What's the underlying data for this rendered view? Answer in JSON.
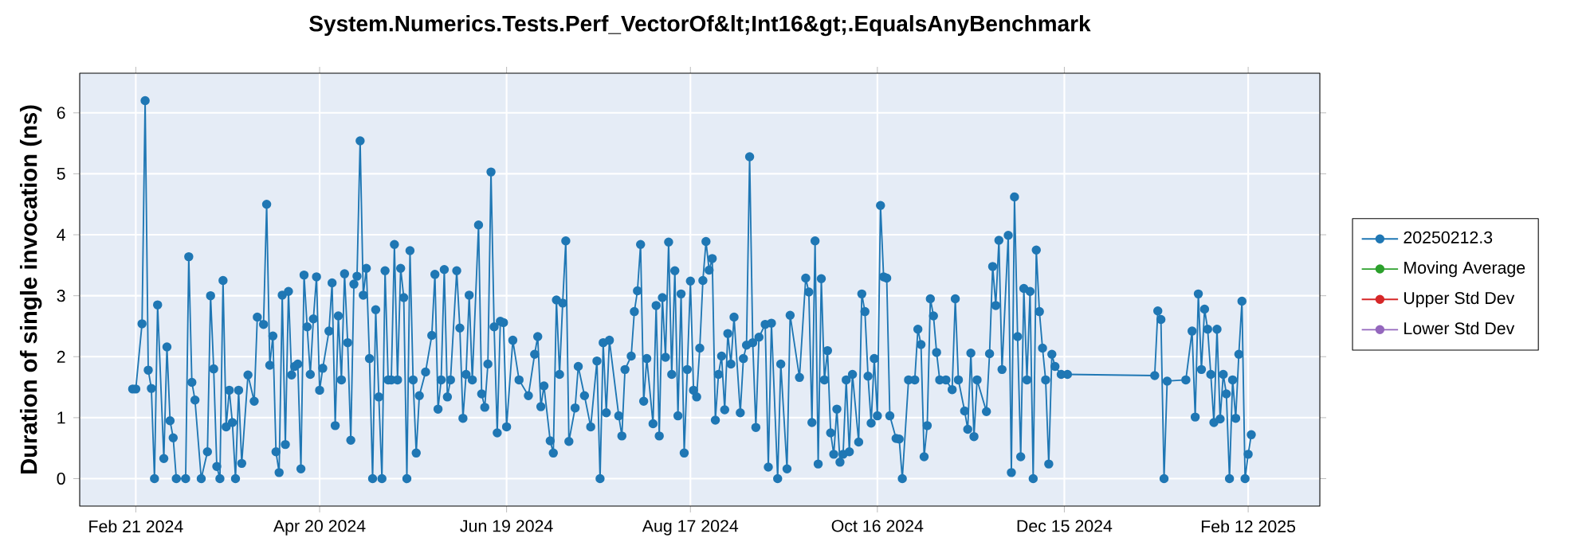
{
  "chart_data": {
    "type": "line",
    "title": "System.Numerics.Tests.Perf_VectorOf&lt;Int16&gt;.EqualsAnyBenchmark",
    "ylabel": "Duration of single invocation (ns)",
    "xlim": [
      "2024-02-03",
      "2025-03-07"
    ],
    "ylim": [
      -0.45,
      6.65
    ],
    "xticks": [
      {
        "value": "2024-02-21",
        "label": "Feb 21 2024"
      },
      {
        "value": "2024-04-20",
        "label": "Apr 20 2024"
      },
      {
        "value": "2024-06-19",
        "label": "Jun 19 2024"
      },
      {
        "value": "2024-08-17",
        "label": "Aug 17 2024"
      },
      {
        "value": "2024-10-16",
        "label": "Oct 16 2024"
      },
      {
        "value": "2024-12-15",
        "label": "Dec 15 2024"
      },
      {
        "value": "2025-02-12",
        "label": "Feb 12 2025"
      }
    ],
    "yticks": [
      0,
      1,
      2,
      3,
      4,
      5,
      6
    ],
    "grid": true,
    "legend": "right",
    "marker": "circle",
    "line_style": "solid",
    "series": [
      {
        "name": "20250212.3",
        "color": "#1f77b4",
        "x": [
          "2024-02-20",
          "2024-02-21",
          "2024-02-23",
          "2024-02-24",
          "2024-02-25",
          "2024-02-26",
          "2024-02-27",
          "2024-02-28",
          "2024-03-01",
          "2024-03-02",
          "2024-03-03",
          "2024-03-04",
          "2024-03-05",
          "2024-03-08",
          "2024-03-09",
          "2024-03-10",
          "2024-03-11",
          "2024-03-13",
          "2024-03-15",
          "2024-03-16",
          "2024-03-17",
          "2024-03-18",
          "2024-03-19",
          "2024-03-20",
          "2024-03-21",
          "2024-03-22",
          "2024-03-23",
          "2024-03-24",
          "2024-03-25",
          "2024-03-26",
          "2024-03-28",
          "2024-03-30",
          "2024-03-31",
          "2024-04-02",
          "2024-04-03",
          "2024-04-04",
          "2024-04-05",
          "2024-04-06",
          "2024-04-07",
          "2024-04-08",
          "2024-04-09",
          "2024-04-10",
          "2024-04-11",
          "2024-04-12",
          "2024-04-13",
          "2024-04-14",
          "2024-04-15",
          "2024-04-16",
          "2024-04-17",
          "2024-04-18",
          "2024-04-19",
          "2024-04-20",
          "2024-04-21",
          "2024-04-23",
          "2024-04-24",
          "2024-04-25",
          "2024-04-26",
          "2024-04-27",
          "2024-04-28",
          "2024-04-29",
          "2024-04-30",
          "2024-05-01",
          "2024-05-02",
          "2024-05-03",
          "2024-05-04",
          "2024-05-05",
          "2024-05-06",
          "2024-05-07",
          "2024-05-08",
          "2024-05-09",
          "2024-05-10",
          "2024-05-11",
          "2024-05-12",
          "2024-05-13",
          "2024-05-14",
          "2024-05-15",
          "2024-05-16",
          "2024-05-17",
          "2024-05-18",
          "2024-05-19",
          "2024-05-20",
          "2024-05-21",
          "2024-05-22",
          "2024-05-24",
          "2024-05-26",
          "2024-05-27",
          "2024-05-28",
          "2024-05-29",
          "2024-05-30",
          "2024-05-31",
          "2024-06-01",
          "2024-06-03",
          "2024-06-04",
          "2024-06-05",
          "2024-06-06",
          "2024-06-07",
          "2024-06-08",
          "2024-06-10",
          "2024-06-11",
          "2024-06-12",
          "2024-06-13",
          "2024-06-14",
          "2024-06-15",
          "2024-06-16",
          "2024-06-17",
          "2024-06-18",
          "2024-06-19",
          "2024-06-21",
          "2024-06-23",
          "2024-06-26",
          "2024-06-28",
          "2024-06-29",
          "2024-06-30",
          "2024-07-01",
          "2024-07-03",
          "2024-07-04",
          "2024-07-05",
          "2024-07-06",
          "2024-07-07",
          "2024-07-08",
          "2024-07-09",
          "2024-07-11",
          "2024-07-12",
          "2024-07-14",
          "2024-07-16",
          "2024-07-18",
          "2024-07-19",
          "2024-07-20",
          "2024-07-21",
          "2024-07-22",
          "2024-07-25",
          "2024-07-26",
          "2024-07-27",
          "2024-07-29",
          "2024-07-30",
          "2024-07-31",
          "2024-08-01",
          "2024-08-02",
          "2024-08-03",
          "2024-08-05",
          "2024-08-06",
          "2024-08-07",
          "2024-08-08",
          "2024-08-09",
          "2024-08-10",
          "2024-08-11",
          "2024-08-12",
          "2024-08-13",
          "2024-08-14",
          "2024-08-15",
          "2024-08-16",
          "2024-08-17",
          "2024-08-18",
          "2024-08-19",
          "2024-08-20",
          "2024-08-21",
          "2024-08-22",
          "2024-08-23",
          "2024-08-24",
          "2024-08-25",
          "2024-08-26",
          "2024-08-27",
          "2024-08-28",
          "2024-08-29",
          "2024-08-30",
          "2024-08-31",
          "2024-09-02",
          "2024-09-03",
          "2024-09-04",
          "2024-09-05",
          "2024-09-06",
          "2024-09-07",
          "2024-09-08",
          "2024-09-10",
          "2024-09-11",
          "2024-09-12",
          "2024-09-14",
          "2024-09-15",
          "2024-09-17",
          "2024-09-18",
          "2024-09-21",
          "2024-09-23",
          "2024-09-24",
          "2024-09-25",
          "2024-09-26",
          "2024-09-27",
          "2024-09-28",
          "2024-09-29",
          "2024-09-30",
          "2024-10-01",
          "2024-10-02",
          "2024-10-03",
          "2024-10-04",
          "2024-10-05",
          "2024-10-06",
          "2024-10-07",
          "2024-10-08",
          "2024-10-10",
          "2024-10-11",
          "2024-10-12",
          "2024-10-13",
          "2024-10-14",
          "2024-10-15",
          "2024-10-16",
          "2024-10-17",
          "2024-10-18",
          "2024-10-19",
          "2024-10-20",
          "2024-10-22",
          "2024-10-23",
          "2024-10-24",
          "2024-10-26",
          "2024-10-28",
          "2024-10-29",
          "2024-10-30",
          "2024-10-31",
          "2024-11-01",
          "2024-11-02",
          "2024-11-03",
          "2024-11-04",
          "2024-11-05",
          "2024-11-07",
          "2024-11-09",
          "2024-11-10",
          "2024-11-11",
          "2024-11-13",
          "2024-11-14",
          "2024-11-15",
          "2024-11-16",
          "2024-11-17",
          "2024-11-20",
          "2024-11-21",
          "2024-11-22",
          "2024-11-23",
          "2024-11-24",
          "2024-11-25",
          "2024-11-27",
          "2024-11-28",
          "2024-11-29",
          "2024-11-30",
          "2024-12-01",
          "2024-12-02",
          "2024-12-03",
          "2024-12-04",
          "2024-12-05",
          "2024-12-06",
          "2024-12-07",
          "2024-12-08",
          "2024-12-09",
          "2024-12-10",
          "2024-12-11",
          "2024-12-12",
          "2024-12-14",
          "2024-12-16",
          "2025-01-13",
          "2025-01-14",
          "2025-01-15",
          "2025-01-16",
          "2025-01-17",
          "2025-01-23",
          "2025-01-25",
          "2025-01-26",
          "2025-01-27",
          "2025-01-28",
          "2025-01-29",
          "2025-01-30",
          "2025-01-31",
          "2025-02-01",
          "2025-02-02",
          "2025-02-03",
          "2025-02-04",
          "2025-02-05",
          "2025-02-06",
          "2025-02-07",
          "2025-02-08",
          "2025-02-09",
          "2025-02-10",
          "2025-02-11",
          "2025-02-12",
          "2025-02-13"
        ],
        "values": [
          1.47,
          1.47,
          2.54,
          6.2,
          1.78,
          1.48,
          0,
          2.85,
          0.33,
          2.16,
          0.95,
          0.67,
          0,
          0,
          3.64,
          1.58,
          1.29,
          0,
          0.44,
          3.0,
          1.8,
          0.2,
          0,
          3.25,
          0.85,
          1.45,
          0.92,
          0,
          1.45,
          0.25,
          1.7,
          1.27,
          2.65,
          2.53,
          4.5,
          1.86,
          2.34,
          0.44,
          0.1,
          3.01,
          0.56,
          3.07,
          1.7,
          1.84,
          1.88,
          0.16,
          3.34,
          2.49,
          1.71,
          2.62,
          3.31,
          1.45,
          1.81,
          2.42,
          3.21,
          0.87,
          2.67,
          1.62,
          3.36,
          2.23,
          0.63,
          3.19,
          3.32,
          5.54,
          3.01,
          3.45,
          1.97,
          0,
          2.77,
          1.34,
          0,
          3.41,
          1.62,
          1.62,
          3.84,
          1.62,
          3.45,
          2.97,
          0,
          3.74,
          1.62,
          0.42,
          1.36,
          1.75,
          2.35,
          3.35,
          1.14,
          1.62,
          3.43,
          1.34,
          1.62,
          3.41,
          2.47,
          0.99,
          1.71,
          3.01,
          1.62,
          4.16,
          1.39,
          1.17,
          1.88,
          5.03,
          2.49,
          0.75,
          2.58,
          2.56,
          0.85,
          2.27,
          1.62,
          1.36,
          2.04,
          2.33,
          1.18,
          1.52,
          0.62,
          0.42,
          2.93,
          1.71,
          2.88,
          3.9,
          0.61,
          1.16,
          1.84,
          1.36,
          0.85,
          1.93,
          0,
          2.23,
          1.08,
          2.27,
          1.03,
          0.7,
          1.79,
          2.01,
          2.74,
          3.08,
          3.84,
          1.27,
          1.97,
          0.9,
          2.84,
          0.7,
          2.97,
          1.99,
          3.88,
          1.71,
          3.41,
          1.03,
          3.03,
          0.42,
          1.79,
          3.24,
          1.45,
          1.34,
          2.14,
          3.25,
          3.89,
          3.42,
          3.61,
          0.96,
          1.71,
          2.01,
          1.13,
          2.38,
          1.88,
          2.65,
          1.08,
          1.97,
          2.19,
          5.28,
          2.23,
          0.84,
          2.32,
          2.53,
          0.19,
          2.55,
          0,
          1.88,
          0.16,
          2.68,
          1.66,
          3.29,
          3.06,
          0.92,
          3.9,
          0.24,
          3.28,
          1.62,
          2.1,
          0.75,
          0.4,
          1.14,
          0.27,
          0.4,
          1.62,
          0.44,
          1.71,
          0.6,
          3.03,
          2.74,
          1.68,
          0.91,
          1.97,
          1.03,
          4.48,
          3.31,
          3.29,
          1.03,
          0.66,
          0.65,
          0,
          1.62,
          1.62,
          2.45,
          2.2,
          0.36,
          0.87,
          2.95,
          2.67,
          2.07,
          1.62,
          1.62,
          1.46,
          2.95,
          1.62,
          1.11,
          0.81,
          2.06,
          0.69,
          1.62,
          1.1,
          2.05,
          3.48,
          2.84,
          3.91,
          1.79,
          3.99,
          0.1,
          4.62,
          2.33,
          0.36,
          3.12,
          1.62,
          3.07,
          0,
          3.75,
          2.74,
          2.14,
          1.62,
          0.24,
          2.04,
          1.84,
          1.71,
          1.71,
          1.69,
          2.75,
          2.61,
          0,
          1.6,
          1.62,
          2.42,
          1.01,
          3.03,
          1.79,
          2.78,
          2.45,
          1.71,
          0.92,
          2.45,
          0.98,
          1.71,
          1.39,
          0,
          1.62,
          0.99,
          2.04,
          2.91,
          0,
          0.4,
          0.72
        ]
      },
      {
        "name": "Moving Average",
        "color": "#2ca02c"
      },
      {
        "name": "Upper Std Dev",
        "color": "#d62728"
      },
      {
        "name": "Lower Std Dev",
        "color": "#9467bd"
      }
    ]
  }
}
